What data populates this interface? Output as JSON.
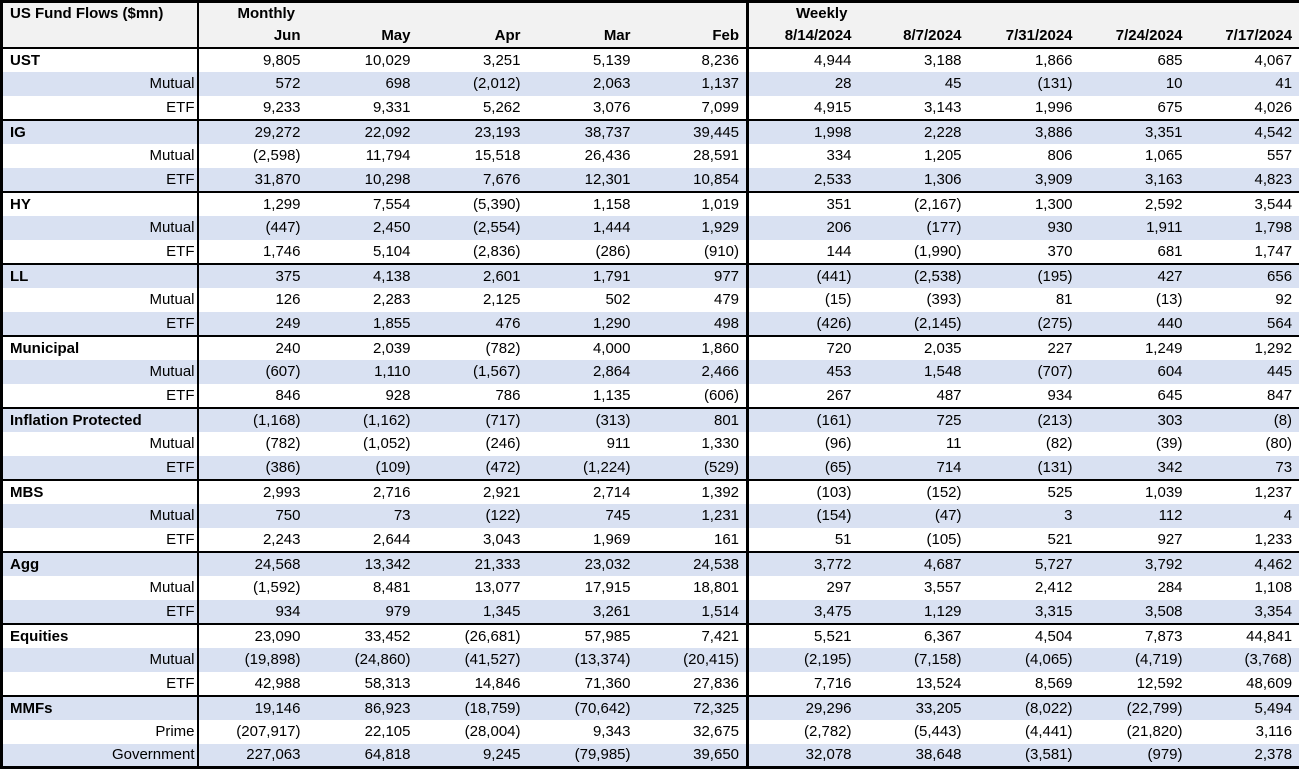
{
  "colors": {
    "alt_row": "#D9E1F2",
    "header_bg": "#F2F2F2",
    "border": "#000000",
    "text": "#000000",
    "background": "#FFFFFF"
  },
  "chart_data": {
    "type": "table",
    "title": "US Fund Flows ($mn)",
    "sections": [
      {
        "label": "Monthly",
        "columns": [
          "Jun",
          "May",
          "Apr",
          "Mar",
          "Feb"
        ]
      },
      {
        "label": "Weekly",
        "columns": [
          "8/14/2024",
          "8/7/2024",
          "7/31/2024",
          "7/24/2024",
          "7/17/2024"
        ]
      }
    ],
    "rows": [
      {
        "label": "UST",
        "type": "group",
        "values": [
          "9,805",
          "10,029",
          "3,251",
          "5,139",
          "8,236",
          "4,944",
          "3,188",
          "1,866",
          "685",
          "4,067"
        ]
      },
      {
        "label": "Mutual",
        "type": "sub",
        "values": [
          "572",
          "698",
          "(2,012)",
          "2,063",
          "1,137",
          "28",
          "45",
          "(131)",
          "10",
          "41"
        ]
      },
      {
        "label": "ETF",
        "type": "sub",
        "values": [
          "9,233",
          "9,331",
          "5,262",
          "3,076",
          "7,099",
          "4,915",
          "3,143",
          "1,996",
          "675",
          "4,026"
        ]
      },
      {
        "label": "IG",
        "type": "group",
        "values": [
          "29,272",
          "22,092",
          "23,193",
          "38,737",
          "39,445",
          "1,998",
          "2,228",
          "3,886",
          "3,351",
          "4,542"
        ]
      },
      {
        "label": "Mutual",
        "type": "sub",
        "values": [
          "(2,598)",
          "11,794",
          "15,518",
          "26,436",
          "28,591",
          "334",
          "1,205",
          "806",
          "1,065",
          "557"
        ]
      },
      {
        "label": "ETF",
        "type": "sub",
        "values": [
          "31,870",
          "10,298",
          "7,676",
          "12,301",
          "10,854",
          "2,533",
          "1,306",
          "3,909",
          "3,163",
          "4,823"
        ]
      },
      {
        "label": "HY",
        "type": "group",
        "values": [
          "1,299",
          "7,554",
          "(5,390)",
          "1,158",
          "1,019",
          "351",
          "(2,167)",
          "1,300",
          "2,592",
          "3,544"
        ]
      },
      {
        "label": "Mutual",
        "type": "sub",
        "values": [
          "(447)",
          "2,450",
          "(2,554)",
          "1,444",
          "1,929",
          "206",
          "(177)",
          "930",
          "1,911",
          "1,798"
        ]
      },
      {
        "label": "ETF",
        "type": "sub",
        "values": [
          "1,746",
          "5,104",
          "(2,836)",
          "(286)",
          "(910)",
          "144",
          "(1,990)",
          "370",
          "681",
          "1,747"
        ]
      },
      {
        "label": "LL",
        "type": "group",
        "values": [
          "375",
          "4,138",
          "2,601",
          "1,791",
          "977",
          "(441)",
          "(2,538)",
          "(195)",
          "427",
          "656"
        ]
      },
      {
        "label": "Mutual",
        "type": "sub",
        "values": [
          "126",
          "2,283",
          "2,125",
          "502",
          "479",
          "(15)",
          "(393)",
          "81",
          "(13)",
          "92"
        ]
      },
      {
        "label": "ETF",
        "type": "sub",
        "values": [
          "249",
          "1,855",
          "476",
          "1,290",
          "498",
          "(426)",
          "(2,145)",
          "(275)",
          "440",
          "564"
        ]
      },
      {
        "label": "Municipal",
        "type": "group",
        "values": [
          "240",
          "2,039",
          "(782)",
          "4,000",
          "1,860",
          "720",
          "2,035",
          "227",
          "1,249",
          "1,292"
        ]
      },
      {
        "label": "Mutual",
        "type": "sub",
        "values": [
          "(607)",
          "1,110",
          "(1,567)",
          "2,864",
          "2,466",
          "453",
          "1,548",
          "(707)",
          "604",
          "445"
        ]
      },
      {
        "label": "ETF",
        "type": "sub",
        "values": [
          "846",
          "928",
          "786",
          "1,135",
          "(606)",
          "267",
          "487",
          "934",
          "645",
          "847"
        ]
      },
      {
        "label": "Inflation Protected",
        "type": "group",
        "values": [
          "(1,168)",
          "(1,162)",
          "(717)",
          "(313)",
          "801",
          "(161)",
          "725",
          "(213)",
          "303",
          "(8)"
        ]
      },
      {
        "label": "Mutual",
        "type": "sub",
        "values": [
          "(782)",
          "(1,052)",
          "(246)",
          "911",
          "1,330",
          "(96)",
          "11",
          "(82)",
          "(39)",
          "(80)"
        ]
      },
      {
        "label": "ETF",
        "type": "sub",
        "values": [
          "(386)",
          "(109)",
          "(472)",
          "(1,224)",
          "(529)",
          "(65)",
          "714",
          "(131)",
          "342",
          "73"
        ]
      },
      {
        "label": "MBS",
        "type": "group",
        "values": [
          "2,993",
          "2,716",
          "2,921",
          "2,714",
          "1,392",
          "(103)",
          "(152)",
          "525",
          "1,039",
          "1,237"
        ]
      },
      {
        "label": "Mutual",
        "type": "sub",
        "values": [
          "750",
          "73",
          "(122)",
          "745",
          "1,231",
          "(154)",
          "(47)",
          "3",
          "112",
          "4"
        ]
      },
      {
        "label": "ETF",
        "type": "sub",
        "values": [
          "2,243",
          "2,644",
          "3,043",
          "1,969",
          "161",
          "51",
          "(105)",
          "521",
          "927",
          "1,233"
        ]
      },
      {
        "label": "Agg",
        "type": "group",
        "values": [
          "24,568",
          "13,342",
          "21,333",
          "23,032",
          "24,538",
          "3,772",
          "4,687",
          "5,727",
          "3,792",
          "4,462"
        ]
      },
      {
        "label": "Mutual",
        "type": "sub",
        "values": [
          "(1,592)",
          "8,481",
          "13,077",
          "17,915",
          "18,801",
          "297",
          "3,557",
          "2,412",
          "284",
          "1,108"
        ]
      },
      {
        "label": "ETF",
        "type": "sub",
        "values": [
          "934",
          "979",
          "1,345",
          "3,261",
          "1,514",
          "3,475",
          "1,129",
          "3,315",
          "3,508",
          "3,354"
        ]
      },
      {
        "label": "Equities",
        "type": "group",
        "values": [
          "23,090",
          "33,452",
          "(26,681)",
          "57,985",
          "7,421",
          "5,521",
          "6,367",
          "4,504",
          "7,873",
          "44,841"
        ]
      },
      {
        "label": "Mutual",
        "type": "sub",
        "values": [
          "(19,898)",
          "(24,860)",
          "(41,527)",
          "(13,374)",
          "(20,415)",
          "(2,195)",
          "(7,158)",
          "(4,065)",
          "(4,719)",
          "(3,768)"
        ]
      },
      {
        "label": "ETF",
        "type": "sub",
        "values": [
          "42,988",
          "58,313",
          "14,846",
          "71,360",
          "27,836",
          "7,716",
          "13,524",
          "8,569",
          "12,592",
          "48,609"
        ]
      },
      {
        "label": "MMFs",
        "type": "group",
        "values": [
          "19,146",
          "86,923",
          "(18,759)",
          "(70,642)",
          "72,325",
          "29,296",
          "33,205",
          "(8,022)",
          "(22,799)",
          "5,494"
        ]
      },
      {
        "label": "Prime",
        "type": "sub",
        "values": [
          "(207,917)",
          "22,105",
          "(28,004)",
          "9,343",
          "32,675",
          "(2,782)",
          "(5,443)",
          "(4,441)",
          "(21,820)",
          "3,116"
        ]
      },
      {
        "label": "Government",
        "type": "sub",
        "values": [
          "227,063",
          "64,818",
          "9,245",
          "(79,985)",
          "39,650",
          "32,078",
          "38,648",
          "(3,581)",
          "(979)",
          "2,378"
        ]
      }
    ]
  }
}
